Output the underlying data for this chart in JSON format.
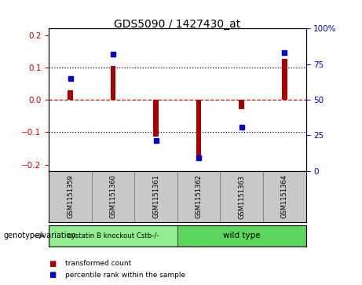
{
  "title": "GDS5090 / 1427430_at",
  "samples": [
    "GSM1151359",
    "GSM1151360",
    "GSM1151361",
    "GSM1151362",
    "GSM1151363",
    "GSM1151364"
  ],
  "bar_values": [
    0.03,
    0.105,
    -0.115,
    -0.175,
    -0.03,
    0.125
  ],
  "percentile_values": [
    0.065,
    0.14,
    -0.125,
    -0.18,
    -0.085,
    0.145
  ],
  "bar_color": "#aa0000",
  "dot_color": "#0000cc",
  "ylim_left": [
    -0.22,
    0.22
  ],
  "ylim_right": [
    0,
    100
  ],
  "yticks_left": [
    -0.2,
    -0.1,
    0.0,
    0.1,
    0.2
  ],
  "yticks_right": [
    0,
    25,
    50,
    75,
    100
  ],
  "ytick_labels_right": [
    "0",
    "25",
    "50",
    "75",
    "100%"
  ],
  "group1_label": "cystatin B knockout Cstb-/-",
  "group2_label": "wild type",
  "group1_color": "#90ee90",
  "group2_color": "#5cd65c",
  "group1_indices": [
    0,
    1,
    2
  ],
  "group2_indices": [
    3,
    4,
    5
  ],
  "genotype_label": "genotype/variation",
  "legend_bar_label": "transformed count",
  "legend_dot_label": "percentile rank within the sample",
  "bar_width": 0.12,
  "background_color": "#ffffff",
  "plot_bg_color": "#ffffff",
  "zero_line_color": "#cc0000",
  "dotted_line_color": "#000000",
  "sample_bg_color": "#c8c8c8"
}
